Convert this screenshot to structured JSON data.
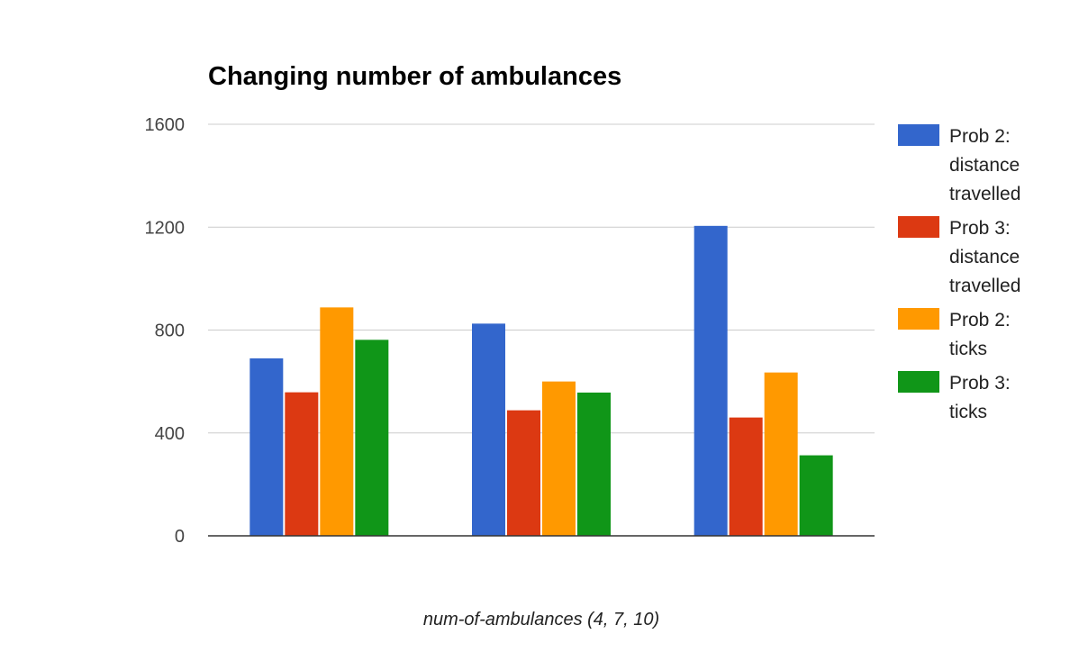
{
  "chart_data": {
    "type": "bar",
    "title": "Changing number of ambulances",
    "xlabel": "num-of-ambulances (4, 7, 10)",
    "ylabel": "",
    "categories": [
      "",
      "",
      ""
    ],
    "ylim": [
      0,
      1600
    ],
    "yticks": [
      "0",
      "400",
      "800",
      "1200",
      "1600"
    ],
    "grid": true,
    "legend_position": "right",
    "series": [
      {
        "name": "Prob 2: distance travelled",
        "legend_lines": [
          "Prob 2:",
          "distance",
          "travelled"
        ],
        "color": "#3366cc",
        "values": [
          690,
          825,
          1205
        ]
      },
      {
        "name": "Prob 3: distance travelled",
        "legend_lines": [
          "Prob 3:",
          "distance",
          "travelled"
        ],
        "color": "#dc3912",
        "values": [
          558,
          488,
          460
        ]
      },
      {
        "name": "Prob 2: ticks",
        "legend_lines": [
          "Prob 2:",
          "ticks"
        ],
        "color": "#ff9900",
        "values": [
          888,
          600,
          635
        ]
      },
      {
        "name": "Prob 3: ticks",
        "legend_lines": [
          "Prob 3:",
          "ticks"
        ],
        "color": "#109618",
        "values": [
          762,
          557,
          313
        ]
      }
    ]
  }
}
